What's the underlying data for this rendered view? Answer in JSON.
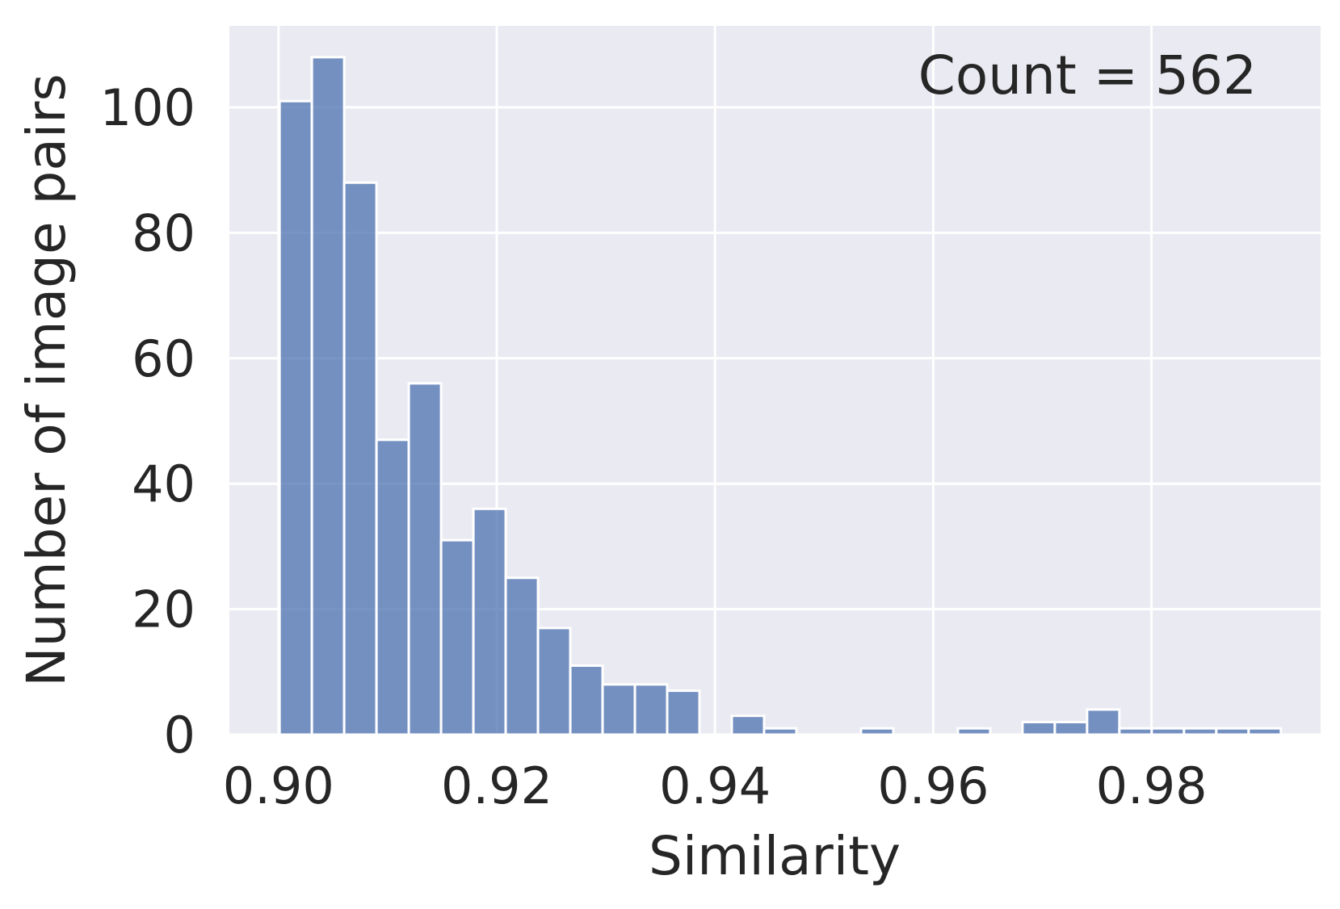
{
  "chart_data": {
    "type": "bar",
    "subtype": "histogram",
    "xlabel": "Similarity",
    "ylabel": "Number of image pairs",
    "annotation": "Count = 562",
    "xlim": [
      0.8955,
      0.9955
    ],
    "ylim": [
      0,
      113
    ],
    "xticks": [
      0.9,
      0.92,
      0.94,
      0.96,
      0.98
    ],
    "xtick_labels": [
      "0.90",
      "0.92",
      "0.94",
      "0.96",
      "0.98"
    ],
    "yticks": [
      0,
      20,
      40,
      60,
      80,
      100
    ],
    "ytick_labels": [
      "0",
      "20",
      "40",
      "60",
      "80",
      "100"
    ],
    "grid": true,
    "bin_start": 0.9001,
    "bin_width": 0.00296,
    "values": [
      101,
      108,
      88,
      47,
      56,
      31,
      36,
      25,
      17,
      11,
      8,
      8,
      7,
      0,
      3,
      1,
      0,
      0,
      1,
      0,
      0,
      1,
      0,
      2,
      2,
      4,
      1,
      1,
      1,
      1,
      1
    ],
    "colors": {
      "bar": "#4c72b0",
      "plot_background": "#eaeaf2",
      "grid": "#ffffff",
      "text": "#262626"
    }
  }
}
